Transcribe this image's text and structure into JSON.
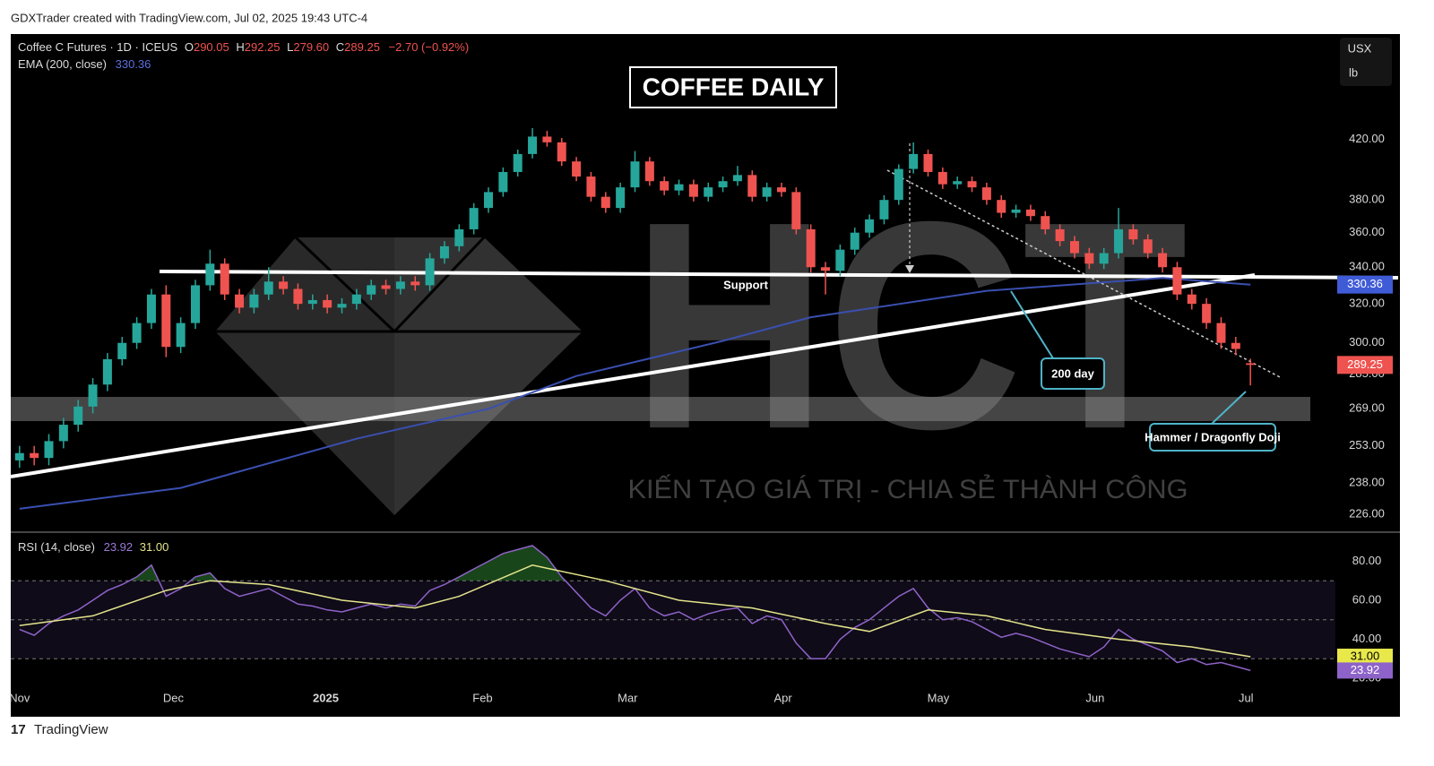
{
  "header": {
    "credit": "GDXTrader created with TradingView.com, Jul 02, 2025 19:43 UTC-4",
    "brand": "TradingView"
  },
  "chart_data": {
    "type": "candlestick",
    "title": "COFFEE DAILY",
    "symbol": "Coffee C Futures · 1D · ICEUS",
    "ohlc_legend": [
      {
        "key": "O",
        "value": "290.05"
      },
      {
        "key": "H",
        "value": "292.25"
      },
      {
        "key": "L",
        "value": "279.60"
      },
      {
        "key": "C",
        "value": "289.25"
      }
    ],
    "change": "−2.70 (−0.92%)",
    "unit": [
      "USX",
      "lb"
    ],
    "log_scale": true,
    "up_color": "#26a69a",
    "down_color": "#ef5350",
    "xlim": [
      -0.6,
      89.8
    ],
    "xticks": [
      {
        "value": 0,
        "label": "Nov"
      },
      {
        "value": 10.5,
        "label": "Dec"
      },
      {
        "value": 20.9,
        "label": "2025"
      },
      {
        "value": 31.6,
        "label": "Feb"
      },
      {
        "value": 41.5,
        "label": "Mar"
      },
      {
        "value": 52.1,
        "label": "Apr"
      },
      {
        "value": 62.7,
        "label": "May"
      },
      {
        "value": 73.4,
        "label": "Jun"
      },
      {
        "value": 83.7,
        "label": "Jul"
      }
    ],
    "ylim": [
      220,
      500
    ],
    "yticks": [
      {
        "value": 420,
        "label": "420.00"
      },
      {
        "value": 380,
        "label": "380.00"
      },
      {
        "value": 360,
        "label": "360.00"
      },
      {
        "value": 340,
        "label": "340.00"
      },
      {
        "value": 320,
        "label": "320.00"
      },
      {
        "value": 300,
        "label": "300.00"
      },
      {
        "value": 285,
        "label": "285.00"
      },
      {
        "value": 269,
        "label": "269.00"
      },
      {
        "value": 253,
        "label": "253.00"
      },
      {
        "value": 238,
        "label": "238.00"
      },
      {
        "value": 226,
        "label": "226.00"
      }
    ],
    "open": [
      247,
      250,
      248,
      255,
      262,
      270,
      280,
      292,
      300,
      310,
      325,
      298,
      310,
      330,
      342,
      325,
      318,
      325,
      332,
      328,
      320,
      322,
      318,
      320,
      325,
      330,
      328,
      332,
      330,
      345,
      352,
      362,
      375,
      385,
      398,
      410,
      422,
      418,
      405,
      395,
      382,
      375,
      388,
      405,
      392,
      386,
      390,
      382,
      388,
      392,
      396,
      382,
      388,
      385,
      362,
      340,
      338,
      350,
      360,
      368,
      380,
      400,
      410,
      398,
      390,
      392,
      388,
      380,
      372,
      374,
      370,
      362,
      355,
      348,
      342,
      348,
      362,
      356,
      348,
      340,
      325,
      320,
      310,
      300,
      290.05
    ],
    "high": [
      253,
      253,
      258,
      265,
      273,
      283,
      295,
      303,
      313,
      328,
      330,
      313,
      333,
      350,
      345,
      328,
      328,
      340,
      335,
      331,
      325,
      325,
      323,
      328,
      333,
      333,
      335,
      335,
      348,
      355,
      365,
      378,
      388,
      401,
      413,
      428,
      426,
      421,
      408,
      398,
      385,
      391,
      412,
      408,
      395,
      393,
      393,
      391,
      395,
      402,
      399,
      391,
      391,
      388,
      365,
      343,
      353,
      363,
      371,
      383,
      403,
      418,
      413,
      401,
      395,
      395,
      391,
      383,
      377,
      377,
      373,
      365,
      358,
      351,
      351,
      375,
      365,
      359,
      351,
      343,
      328,
      323,
      313,
      303,
      292.25
    ],
    "low": [
      244,
      245,
      245,
      252,
      259,
      267,
      277,
      289,
      297,
      307,
      293,
      295,
      307,
      327,
      322,
      315,
      315,
      322,
      325,
      317,
      317,
      315,
      315,
      317,
      322,
      325,
      325,
      327,
      327,
      342,
      349,
      359,
      372,
      382,
      395,
      407,
      415,
      402,
      392,
      379,
      372,
      372,
      385,
      389,
      383,
      383,
      379,
      379,
      385,
      389,
      379,
      379,
      382,
      359,
      337,
      325,
      335,
      347,
      357,
      365,
      377,
      397,
      395,
      387,
      387,
      385,
      377,
      369,
      369,
      367,
      359,
      352,
      345,
      339,
      339,
      345,
      353,
      345,
      337,
      322,
      317,
      307,
      297,
      294,
      279.6
    ],
    "close": [
      250,
      248,
      255,
      262,
      270,
      280,
      292,
      300,
      310,
      325,
      298,
      310,
      330,
      342,
      325,
      318,
      325,
      332,
      328,
      320,
      322,
      318,
      320,
      325,
      330,
      328,
      332,
      330,
      345,
      352,
      362,
      375,
      385,
      398,
      410,
      422,
      418,
      405,
      395,
      382,
      375,
      388,
      405,
      392,
      386,
      390,
      382,
      388,
      392,
      396,
      382,
      388,
      385,
      362,
      340,
      338,
      350,
      360,
      368,
      380,
      400,
      410,
      398,
      390,
      392,
      388,
      380,
      372,
      374,
      370,
      362,
      355,
      348,
      342,
      348,
      362,
      356,
      348,
      340,
      325,
      320,
      310,
      300,
      297,
      289.25
    ],
    "ema": {
      "name": "EMA (200, close)",
      "color": "#3a4fb0",
      "x": [
        0,
        11,
        23,
        32,
        38,
        48,
        54,
        66,
        78,
        84
      ],
      "values": [
        228,
        236,
        256,
        269,
        284,
        301,
        313,
        327,
        334,
        330.36
      ]
    },
    "annotations": {
      "support": "Support",
      "ema_note": "200 day",
      "candle_note": "Hammer / Dragonfly Doji"
    },
    "watermark": {
      "logo": "HCT",
      "slogan": "KIẾN TẠO GIÁ TRỊ - CHIA SẺ THÀNH CÔNG"
    },
    "rsi": {
      "name": "RSI (14, close)",
      "color": "#8e63c9",
      "ylim": [
        14,
        94
      ],
      "yticks": [
        {
          "value": 20,
          "label": "20.00"
        },
        {
          "value": 40,
          "label": "40.00"
        },
        {
          "value": 60,
          "label": "60.00"
        },
        {
          "value": 80,
          "label": "80.00"
        }
      ],
      "bands": [
        30,
        50,
        70
      ],
      "values": [
        45,
        42,
        48,
        52,
        55,
        60,
        65,
        68,
        72,
        78,
        62,
        66,
        72,
        74,
        66,
        62,
        64,
        66,
        62,
        58,
        57,
        55,
        54,
        56,
        58,
        56,
        58,
        57,
        65,
        68,
        72,
        76,
        80,
        84,
        86,
        88,
        82,
        72,
        64,
        56,
        52,
        60,
        66,
        56,
        52,
        54,
        50,
        53,
        55,
        56,
        48,
        52,
        50,
        38,
        30,
        30,
        40,
        46,
        50,
        56,
        62,
        66,
        56,
        50,
        51,
        49,
        45,
        41,
        43,
        41,
        38,
        35,
        33,
        31,
        36,
        45,
        40,
        37,
        34,
        28,
        30,
        27,
        28,
        26,
        23.92
      ],
      "ma": {
        "color": "#e4e48c",
        "x": [
          0,
          5,
          10,
          13,
          17,
          22,
          27,
          30,
          35,
          40,
          45,
          50,
          55,
          58,
          62,
          66,
          70,
          75,
          80,
          84
        ],
        "values": [
          47,
          52,
          65,
          70,
          68,
          60,
          56,
          62,
          78,
          70,
          60,
          56,
          48,
          44,
          55,
          52,
          45,
          40,
          36,
          31
        ],
        "value_labels": [
          null,
          null,
          null,
          null,
          null,
          null,
          null,
          null,
          null,
          null,
          null,
          null,
          null,
          null,
          null,
          null,
          null,
          null,
          null,
          "31.00"
        ]
      }
    }
  }
}
